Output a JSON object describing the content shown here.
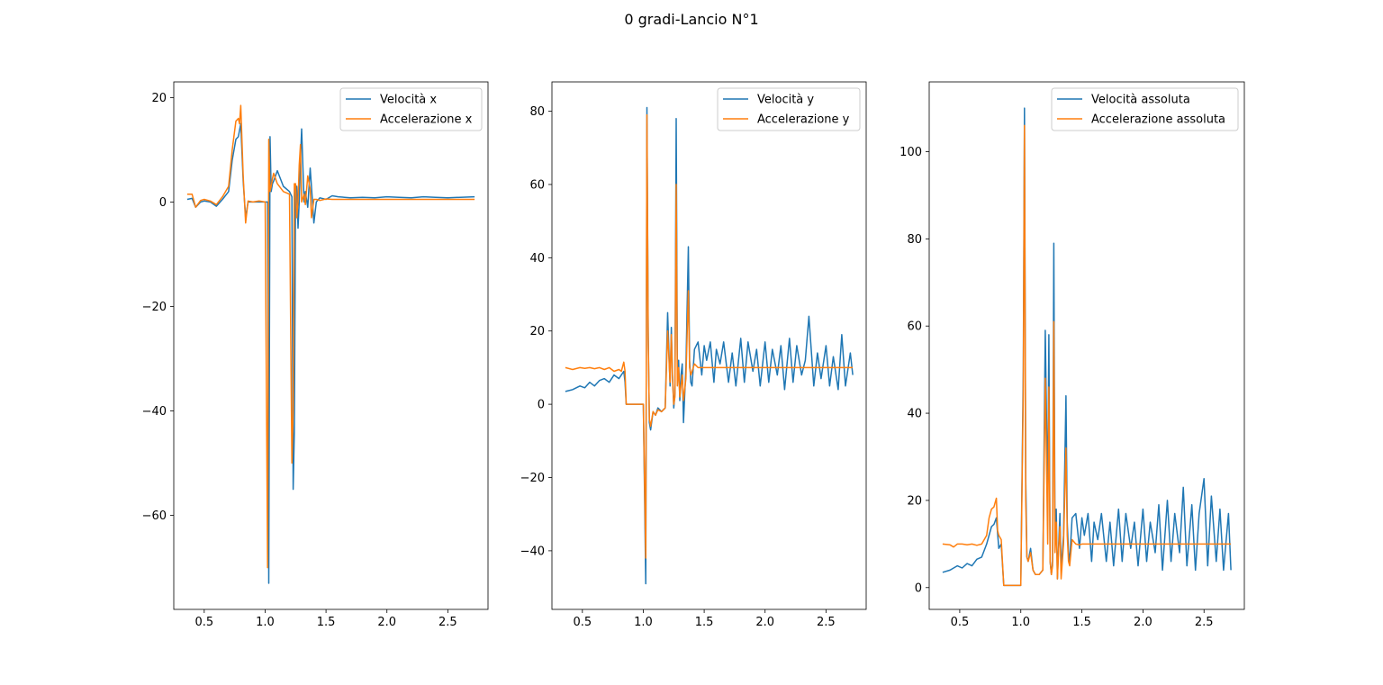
{
  "figure": {
    "title": "0 gradi-Lancio N°1"
  },
  "colors": {
    "series_blue": "#1f77b4",
    "series_orange": "#ff7f0e"
  },
  "chart_data": [
    {
      "type": "line",
      "title": "",
      "xlabel": "",
      "ylabel": "",
      "xlim": [
        0.25,
        2.83
      ],
      "ylim": [
        -78,
        23
      ],
      "xticks": [
        0.5,
        1.0,
        1.5,
        2.0,
        2.5
      ],
      "xtick_labels": [
        "0.5",
        "1.0",
        "1.5",
        "2.0",
        "2.5"
      ],
      "yticks": [
        -60,
        -40,
        -20,
        0,
        20
      ],
      "ytick_labels": [
        "−60",
        "−40",
        "−20",
        "0",
        "20"
      ],
      "legend": "top-right",
      "grid": false,
      "series": [
        {
          "name": "Velocità x",
          "color": "#1f77b4",
          "x": [
            0.36,
            0.4,
            0.43,
            0.47,
            0.5,
            0.55,
            0.6,
            0.65,
            0.7,
            0.73,
            0.76,
            0.78,
            0.8,
            0.82,
            0.84,
            0.86,
            0.9,
            0.95,
            1.0,
            1.02,
            1.03,
            1.04,
            1.05,
            1.06,
            1.07,
            1.1,
            1.15,
            1.2,
            1.22,
            1.23,
            1.24,
            1.25,
            1.26,
            1.27,
            1.28,
            1.29,
            1.3,
            1.32,
            1.33,
            1.35,
            1.37,
            1.38,
            1.4,
            1.42,
            1.45,
            1.5,
            1.55,
            1.6,
            1.7,
            1.8,
            1.9,
            2.0,
            2.1,
            2.2,
            2.3,
            2.4,
            2.5,
            2.6,
            2.72
          ],
          "y": [
            0.5,
            0.7,
            -1,
            0,
            0.2,
            0,
            -0.8,
            0.5,
            2,
            8,
            12,
            12.5,
            15,
            4,
            -3,
            0,
            0,
            0,
            0,
            0,
            -73,
            12.5,
            2,
            3.5,
            4,
            6,
            3,
            2,
            1,
            -55,
            -44,
            3,
            3,
            -5,
            0,
            8,
            14,
            0,
            2,
            -1,
            6.5,
            3,
            -4,
            0,
            0.8,
            0.5,
            1.2,
            1,
            0.8,
            0.9,
            0.8,
            1,
            0.9,
            0.8,
            1,
            0.9,
            0.8,
            0.9,
            1
          ]
        },
        {
          "name": "Accelerazione x",
          "color": "#ff7f0e",
          "x": [
            0.36,
            0.4,
            0.43,
            0.47,
            0.5,
            0.55,
            0.6,
            0.65,
            0.7,
            0.73,
            0.76,
            0.78,
            0.79,
            0.8,
            0.82,
            0.84,
            0.86,
            0.9,
            0.95,
            1.0,
            1.02,
            1.03,
            1.04,
            1.05,
            1.06,
            1.07,
            1.1,
            1.15,
            1.2,
            1.22,
            1.23,
            1.24,
            1.25,
            1.26,
            1.27,
            1.28,
            1.29,
            1.3,
            1.32,
            1.33,
            1.35,
            1.37,
            1.38,
            1.4,
            1.42,
            1.45,
            1.5,
            1.55,
            1.6,
            1.7,
            1.8,
            1.9,
            2.0,
            2.1,
            2.2,
            2.3,
            2.4,
            2.5,
            2.6,
            2.72
          ],
          "y": [
            1.5,
            1.5,
            -1,
            0.3,
            0.5,
            0.2,
            -0.5,
            1,
            3,
            10,
            15.5,
            16,
            15,
            18.5,
            5,
            -4,
            0.2,
            0,
            0.2,
            0,
            -70,
            12,
            2,
            3,
            4.5,
            5.5,
            3.5,
            2,
            1.5,
            -50,
            -40,
            3.5,
            3.5,
            -3,
            0,
            7,
            11,
            0,
            1.5,
            -0.5,
            5,
            2.5,
            -3,
            0.5,
            0.5,
            0.3,
            0.6,
            0.5,
            0.5,
            0.5,
            0.5,
            0.5,
            0.5,
            0.5,
            0.5,
            0.5,
            0.5,
            0.5,
            0.5,
            0.5
          ]
        }
      ]
    },
    {
      "type": "line",
      "title": "",
      "xlabel": "",
      "ylabel": "",
      "xlim": [
        0.25,
        2.83
      ],
      "ylim": [
        -56,
        88
      ],
      "xticks": [
        0.5,
        1.0,
        1.5,
        2.0,
        2.5
      ],
      "xtick_labels": [
        "0.5",
        "1.0",
        "1.5",
        "2.0",
        "2.5"
      ],
      "yticks": [
        -40,
        -20,
        0,
        20,
        40,
        60,
        80
      ],
      "ytick_labels": [
        "−40",
        "−20",
        "0",
        "20",
        "40",
        "60",
        "80"
      ],
      "legend": "top-right",
      "grid": false,
      "series": [
        {
          "name": "Velocità y",
          "color": "#1f77b4",
          "x": [
            0.36,
            0.42,
            0.48,
            0.52,
            0.56,
            0.6,
            0.64,
            0.68,
            0.72,
            0.76,
            0.8,
            0.82,
            0.84,
            0.85,
            0.86,
            0.9,
            0.95,
            1.0,
            1.02,
            1.03,
            1.04,
            1.05,
            1.06,
            1.08,
            1.1,
            1.12,
            1.15,
            1.18,
            1.2,
            1.22,
            1.23,
            1.24,
            1.25,
            1.26,
            1.27,
            1.28,
            1.29,
            1.3,
            1.31,
            1.32,
            1.33,
            1.35,
            1.37,
            1.38,
            1.39,
            1.4,
            1.42,
            1.45,
            1.48,
            1.5,
            1.52,
            1.55,
            1.58,
            1.6,
            1.63,
            1.66,
            1.7,
            1.73,
            1.76,
            1.8,
            1.83,
            1.86,
            1.9,
            1.93,
            1.96,
            2.0,
            2.03,
            2.06,
            2.1,
            2.13,
            2.16,
            2.2,
            2.23,
            2.26,
            2.3,
            2.33,
            2.36,
            2.4,
            2.43,
            2.46,
            2.5,
            2.53,
            2.56,
            2.6,
            2.63,
            2.66,
            2.7,
            2.72
          ],
          "y": [
            3.5,
            4,
            5,
            4.5,
            6,
            5,
            6.5,
            7,
            6,
            8,
            7,
            8,
            9,
            6,
            0,
            0,
            0,
            0,
            -49,
            81,
            20,
            -5,
            -7,
            -2,
            -3,
            -1,
            -2,
            -1,
            25,
            5,
            21,
            8,
            -1,
            3,
            78,
            10,
            12,
            1,
            8,
            11,
            -5,
            10,
            43,
            12,
            6,
            5,
            15,
            17,
            8,
            16,
            12,
            17,
            6,
            15,
            11,
            17,
            6,
            14,
            5,
            18,
            6,
            17,
            9,
            15,
            5,
            17,
            6,
            15,
            8,
            16,
            4,
            18,
            6,
            16,
            8,
            12,
            24,
            5,
            14,
            7,
            16,
            5,
            13,
            4,
            19,
            5,
            14,
            8
          ]
        },
        {
          "name": "Accelerazione y",
          "color": "#ff7f0e",
          "x": [
            0.36,
            0.42,
            0.48,
            0.52,
            0.56,
            0.6,
            0.64,
            0.68,
            0.72,
            0.76,
            0.8,
            0.82,
            0.84,
            0.85,
            0.86,
            0.9,
            0.95,
            1.0,
            1.02,
            1.03,
            1.04,
            1.05,
            1.06,
            1.08,
            1.1,
            1.12,
            1.15,
            1.18,
            1.2,
            1.22,
            1.23,
            1.24,
            1.25,
            1.26,
            1.27,
            1.28,
            1.29,
            1.3,
            1.31,
            1.32,
            1.33,
            1.35,
            1.37,
            1.38,
            1.39,
            1.4,
            1.42,
            1.45,
            1.5,
            1.6,
            1.7,
            1.8,
            1.9,
            2.0,
            2.1,
            2.2,
            2.3,
            2.4,
            2.5,
            2.6,
            2.72
          ],
          "y": [
            10,
            9.5,
            10,
            9.8,
            10,
            9.7,
            10,
            9.5,
            10,
            9,
            9.5,
            9,
            11.5,
            9,
            0,
            0,
            0,
            0,
            -42,
            79,
            18,
            -4,
            -6,
            -2,
            -3,
            -1.5,
            -2,
            -1,
            20,
            6,
            19,
            7,
            0,
            2,
            60,
            5,
            10,
            2,
            5,
            8,
            1,
            7,
            31,
            10,
            8,
            9,
            11,
            10,
            10,
            10,
            10,
            10,
            10,
            10,
            10,
            10,
            10,
            10,
            10,
            10,
            10
          ]
        }
      ]
    },
    {
      "type": "line",
      "title": "",
      "xlabel": "",
      "ylabel": "",
      "xlim": [
        0.25,
        2.83
      ],
      "ylim": [
        -5,
        116
      ],
      "xticks": [
        0.5,
        1.0,
        1.5,
        2.0,
        2.5
      ],
      "xtick_labels": [
        "0.5",
        "1.0",
        "1.5",
        "2.0",
        "2.5"
      ],
      "yticks": [
        0,
        20,
        40,
        60,
        80,
        100
      ],
      "ytick_labels": [
        "0",
        "20",
        "40",
        "60",
        "80",
        "100"
      ],
      "legend": "top-right",
      "grid": false,
      "series": [
        {
          "name": "Velocità assoluta",
          "color": "#1f77b4",
          "x": [
            0.36,
            0.42,
            0.48,
            0.52,
            0.56,
            0.6,
            0.64,
            0.68,
            0.72,
            0.76,
            0.78,
            0.8,
            0.82,
            0.84,
            0.86,
            0.9,
            0.95,
            1.0,
            1.02,
            1.03,
            1.04,
            1.05,
            1.06,
            1.08,
            1.1,
            1.12,
            1.15,
            1.18,
            1.2,
            1.22,
            1.23,
            1.24,
            1.25,
            1.26,
            1.27,
            1.28,
            1.29,
            1.3,
            1.31,
            1.32,
            1.33,
            1.35,
            1.37,
            1.38,
            1.39,
            1.4,
            1.42,
            1.45,
            1.48,
            1.5,
            1.52,
            1.55,
            1.58,
            1.6,
            1.63,
            1.66,
            1.7,
            1.73,
            1.76,
            1.8,
            1.83,
            1.86,
            1.9,
            1.93,
            1.96,
            2.0,
            2.03,
            2.06,
            2.1,
            2.13,
            2.16,
            2.2,
            2.23,
            2.26,
            2.3,
            2.33,
            2.36,
            2.4,
            2.43,
            2.46,
            2.5,
            2.53,
            2.56,
            2.6,
            2.63,
            2.66,
            2.7,
            2.72
          ],
          "y": [
            3.5,
            4,
            5,
            4.5,
            5.5,
            5,
            6.5,
            7,
            10,
            14,
            14.5,
            16,
            9,
            10,
            0.5,
            0.5,
            0.5,
            0.5,
            50,
            110,
            25,
            7,
            6,
            9,
            4,
            3,
            3,
            4,
            59,
            20,
            58,
            6,
            3,
            6,
            79,
            11,
            18,
            2,
            10,
            17,
            4,
            12,
            44,
            15,
            8,
            6,
            16,
            17,
            9,
            16,
            12,
            17,
            6,
            15,
            11,
            17,
            6,
            15,
            5,
            18,
            6,
            17,
            9,
            15,
            5,
            18,
            6,
            15,
            8,
            19,
            4,
            20,
            6,
            17,
            8,
            23,
            5,
            19,
            4,
            17,
            25,
            5,
            21,
            6,
            18,
            4,
            17,
            4
          ]
        },
        {
          "name": "Accelerazione assoluta",
          "color": "#ff7f0e",
          "x": [
            0.36,
            0.42,
            0.45,
            0.48,
            0.52,
            0.56,
            0.6,
            0.64,
            0.68,
            0.72,
            0.74,
            0.76,
            0.78,
            0.8,
            0.81,
            0.82,
            0.84,
            0.86,
            0.9,
            0.95,
            1.0,
            1.02,
            1.03,
            1.04,
            1.05,
            1.06,
            1.08,
            1.1,
            1.12,
            1.15,
            1.18,
            1.2,
            1.22,
            1.23,
            1.24,
            1.25,
            1.26,
            1.27,
            1.28,
            1.29,
            1.3,
            1.31,
            1.32,
            1.33,
            1.35,
            1.37,
            1.38,
            1.39,
            1.4,
            1.42,
            1.45,
            1.48,
            1.5,
            1.55,
            1.6,
            1.7,
            1.8,
            1.9,
            2.0,
            2.1,
            2.2,
            2.3,
            2.4,
            2.5,
            2.6,
            2.72
          ],
          "y": [
            10,
            9.8,
            9.3,
            10,
            10,
            9.8,
            10,
            9.7,
            10,
            12,
            16,
            18,
            18.5,
            20.5,
            13,
            12,
            11,
            0.5,
            0.5,
            0.5,
            0.5,
            45,
            106,
            20,
            7,
            6,
            8,
            4,
            3,
            3,
            4,
            48,
            10,
            46,
            6,
            3,
            5,
            61,
            8,
            15,
            2,
            9,
            14,
            2,
            10,
            32,
            12,
            6,
            5,
            11,
            10,
            9.8,
            10,
            10,
            10,
            10,
            10,
            10,
            10,
            10,
            10,
            10,
            10,
            10,
            10,
            10
          ]
        }
      ]
    }
  ]
}
